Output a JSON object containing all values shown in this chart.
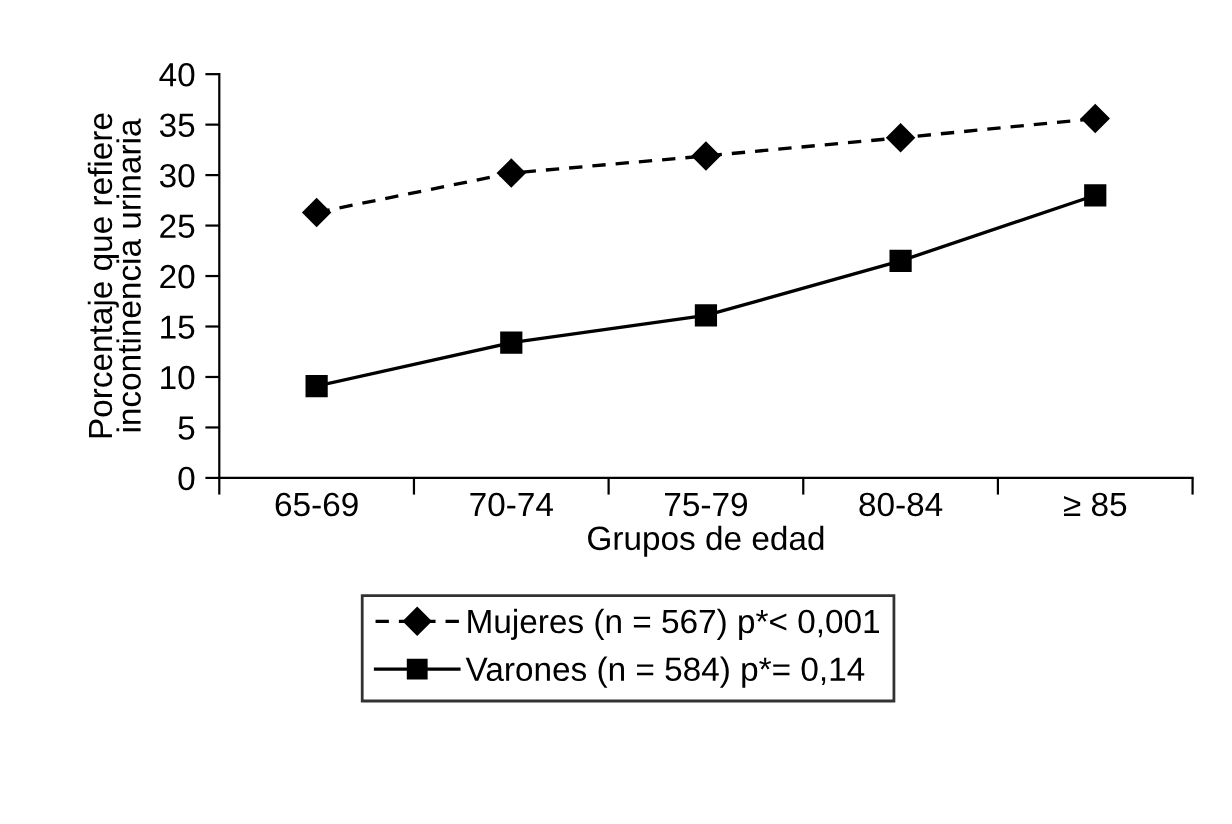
{
  "chart_data": {
    "type": "line",
    "xlabel": "Grupos de edad",
    "ylabel": "Porcentaje que refiere\nincontinencia urinaria",
    "categories": [
      "65-69",
      "70-74",
      "75-79",
      "80-84",
      "≥ 85"
    ],
    "series": [
      {
        "name": "Mujeres (n = 567) p*< 0,001",
        "color": "#000000",
        "marker": "diamond",
        "line_style": "dashed",
        "values": [
          26.3,
          30.2,
          31.9,
          33.7,
          35.6
        ]
      },
      {
        "name": "Varones (n = 584) p*= 0,14",
        "color": "#000000",
        "marker": "square",
        "line_style": "solid",
        "values": [
          9.1,
          13.4,
          16.1,
          21.5,
          28.0
        ]
      }
    ],
    "ylim": [
      0,
      40
    ],
    "yticks": [
      0,
      5,
      10,
      15,
      20,
      25,
      30,
      35,
      40
    ],
    "grid": false,
    "legend": "bottom"
  }
}
